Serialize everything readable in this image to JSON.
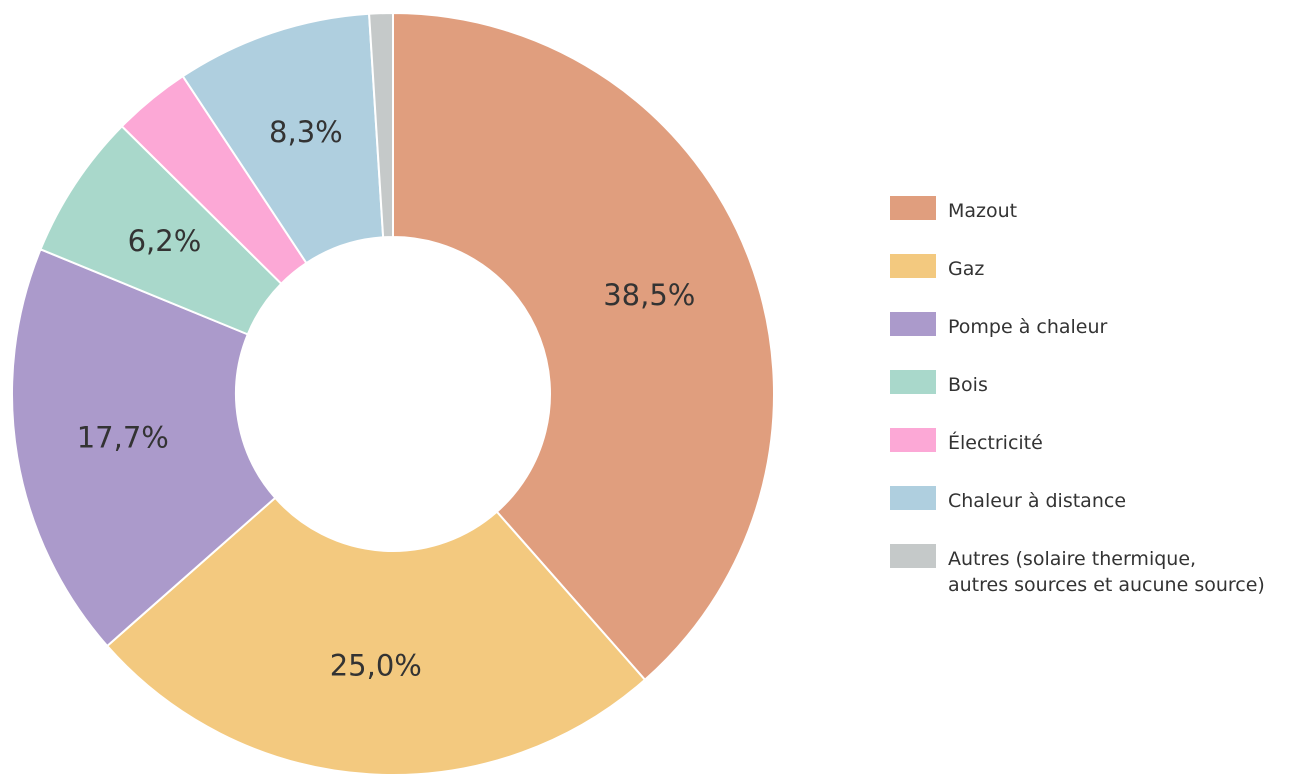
{
  "chart_data": {
    "type": "donut",
    "categories": [
      "Mazout",
      "Gaz",
      "Pompe à chaleur",
      "Bois",
      "Électricité",
      "Chaleur à distance",
      "Autres (solaire thermique,\nautres sources et aucune source)"
    ],
    "values": [
      38.5,
      25.0,
      17.7,
      6.2,
      3.3,
      8.3,
      1.0
    ],
    "value_labels": [
      "38,5%",
      "25,0%",
      "17,7%",
      "6,2%",
      null,
      "8,3%",
      null
    ],
    "colors": [
      "#e09e7e",
      "#f3c97f",
      "#ab9acb",
      "#a9d8cb",
      "#fca8d6",
      "#afcfdf",
      "#c5c9c9"
    ],
    "legend": "right"
  }
}
